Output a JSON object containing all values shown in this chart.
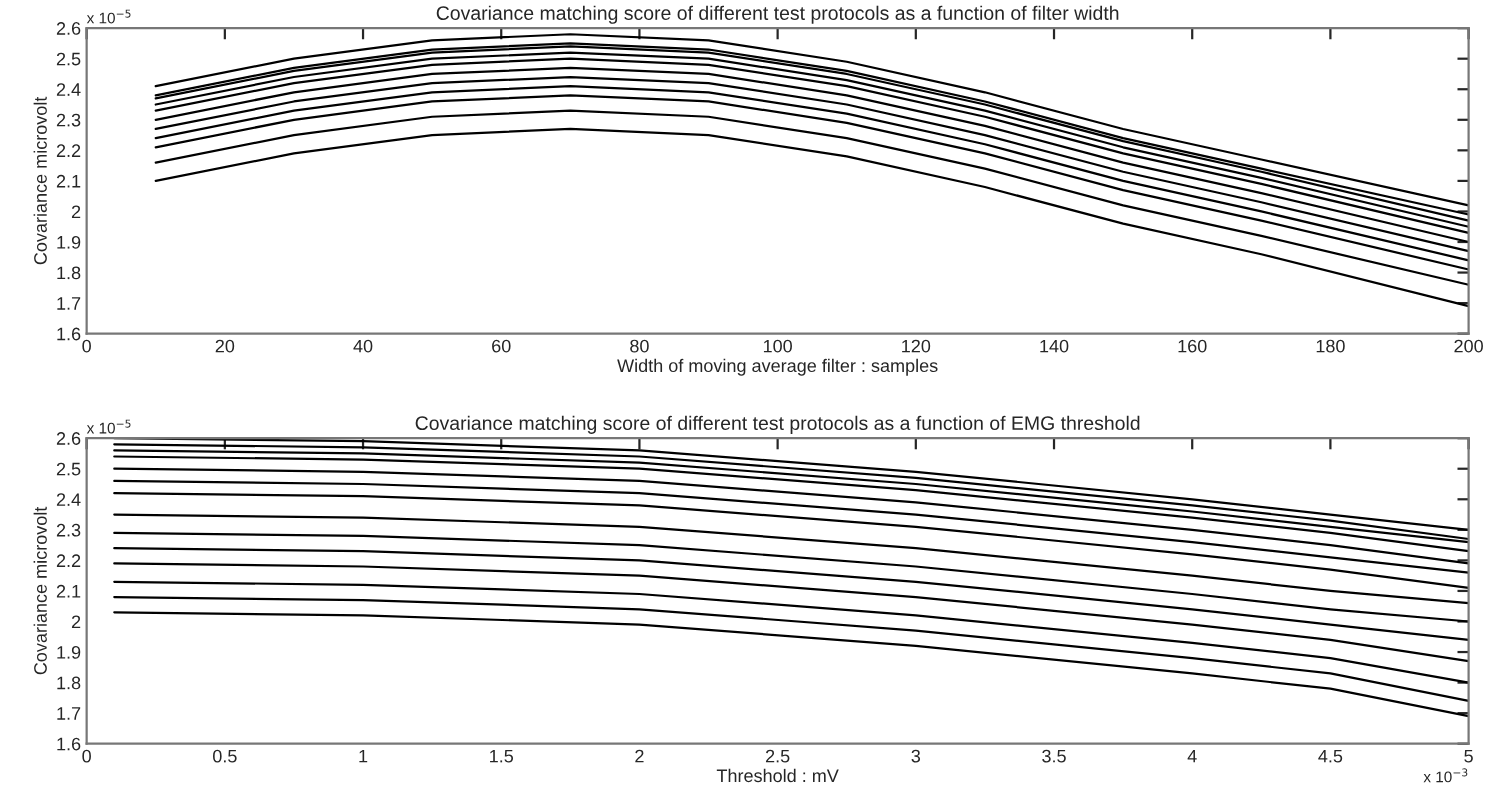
{
  "chart_data": [
    {
      "type": "line",
      "title": "Covariance matching score of different test protocols as a function of filter width",
      "xlabel": "Width of moving average filter : samples",
      "ylabel": "Covariance microvolt",
      "annotations": [
        "x 10$^{−5}$"
      ],
      "x": [
        10,
        30,
        50,
        70,
        90,
        110,
        130,
        150,
        170,
        200
      ],
      "xlim": [
        0,
        200
      ],
      "xticks": [
        0,
        20,
        40,
        60,
        80,
        100,
        120,
        140,
        160,
        180,
        200
      ],
      "ylim": [
        1.6,
        2.6
      ],
      "yticks": [
        1.6,
        1.7,
        1.8,
        1.9,
        2,
        2.1,
        2.2,
        2.3,
        2.4,
        2.5,
        2.6
      ],
      "grid": false,
      "marker": "none",
      "line_style": "solid",
      "series": [
        {
          "color": "#000000",
          "values": [
            2.41,
            2.5,
            2.56,
            2.58,
            2.56,
            2.49,
            2.39,
            2.27,
            2.17,
            2.02
          ]
        },
        {
          "color": "#000000",
          "values": [
            2.38,
            2.47,
            2.53,
            2.55,
            2.53,
            2.46,
            2.36,
            2.24,
            2.14,
            1.99
          ]
        },
        {
          "color": "#000000",
          "values": [
            2.37,
            2.46,
            2.52,
            2.54,
            2.52,
            2.45,
            2.35,
            2.23,
            2.13,
            1.97
          ]
        },
        {
          "color": "#000000",
          "values": [
            2.35,
            2.44,
            2.5,
            2.52,
            2.5,
            2.43,
            2.33,
            2.21,
            2.11,
            1.95
          ]
        },
        {
          "color": "#000000",
          "values": [
            2.33,
            2.42,
            2.48,
            2.5,
            2.48,
            2.41,
            2.31,
            2.19,
            2.09,
            1.93
          ]
        },
        {
          "color": "#000000",
          "values": [
            2.3,
            2.39,
            2.45,
            2.47,
            2.45,
            2.38,
            2.28,
            2.16,
            2.06,
            1.9
          ]
        },
        {
          "color": "#000000",
          "values": [
            2.27,
            2.36,
            2.42,
            2.44,
            2.42,
            2.35,
            2.25,
            2.13,
            2.03,
            1.87
          ]
        },
        {
          "color": "#000000",
          "values": [
            2.24,
            2.33,
            2.39,
            2.41,
            2.39,
            2.32,
            2.22,
            2.1,
            2.0,
            1.84
          ]
        },
        {
          "color": "#000000",
          "values": [
            2.21,
            2.3,
            2.36,
            2.38,
            2.36,
            2.29,
            2.19,
            2.07,
            1.97,
            1.81
          ]
        },
        {
          "color": "#000000",
          "values": [
            2.16,
            2.25,
            2.31,
            2.33,
            2.31,
            2.24,
            2.14,
            2.02,
            1.92,
            1.76
          ]
        },
        {
          "color": "#000000",
          "values": [
            2.1,
            2.19,
            2.25,
            2.27,
            2.25,
            2.18,
            2.08,
            1.96,
            1.86,
            1.69
          ]
        }
      ]
    },
    {
      "type": "line",
      "title": "Covariance matching score of different test protocols as a function of EMG threshold",
      "xlabel": "Threshold : mV",
      "ylabel": "Covariance microvolt",
      "annotations": [
        "x 10$^{−5}$",
        "x 10$^{−3}$"
      ],
      "x": [
        0.1,
        1,
        2,
        3,
        4,
        4.5,
        5
      ],
      "xlim": [
        0,
        5
      ],
      "xticks": [
        0,
        0.5,
        1,
        1.5,
        2,
        2.5,
        3,
        3.5,
        4,
        4.5,
        5
      ],
      "ylim": [
        1.6,
        2.6
      ],
      "yticks": [
        1.6,
        1.7,
        1.8,
        1.9,
        2,
        2.1,
        2.2,
        2.3,
        2.4,
        2.5,
        2.6
      ],
      "grid": false,
      "marker": "none",
      "line_style": "solid",
      "series": [
        {
          "color": "#000000",
          "values": [
            2.6,
            2.59,
            2.56,
            2.49,
            2.4,
            2.35,
            2.3
          ]
        },
        {
          "color": "#000000",
          "values": [
            2.58,
            2.57,
            2.54,
            2.47,
            2.38,
            2.33,
            2.27
          ]
        },
        {
          "color": "#000000",
          "values": [
            2.56,
            2.55,
            2.52,
            2.45,
            2.36,
            2.31,
            2.26
          ]
        },
        {
          "color": "#000000",
          "values": [
            2.54,
            2.53,
            2.5,
            2.43,
            2.34,
            2.29,
            2.23
          ]
        },
        {
          "color": "#000000",
          "values": [
            2.5,
            2.49,
            2.46,
            2.39,
            2.3,
            2.25,
            2.19
          ]
        },
        {
          "color": "#000000",
          "values": [
            2.46,
            2.45,
            2.42,
            2.35,
            2.26,
            2.21,
            2.16
          ]
        },
        {
          "color": "#000000",
          "values": [
            2.42,
            2.41,
            2.38,
            2.31,
            2.22,
            2.17,
            2.11
          ]
        },
        {
          "color": "#000000",
          "values": [
            2.35,
            2.34,
            2.31,
            2.24,
            2.15,
            2.1,
            2.06
          ]
        },
        {
          "color": "#000000",
          "values": [
            2.29,
            2.28,
            2.25,
            2.18,
            2.09,
            2.04,
            2.0
          ]
        },
        {
          "color": "#000000",
          "values": [
            2.24,
            2.23,
            2.2,
            2.13,
            2.04,
            1.99,
            1.94
          ]
        },
        {
          "color": "#000000",
          "values": [
            2.19,
            2.18,
            2.15,
            2.08,
            1.99,
            1.94,
            1.87
          ]
        },
        {
          "color": "#000000",
          "values": [
            2.13,
            2.12,
            2.09,
            2.02,
            1.93,
            1.88,
            1.8
          ]
        },
        {
          "color": "#000000",
          "values": [
            2.08,
            2.07,
            2.04,
            1.97,
            1.88,
            1.83,
            1.74
          ]
        },
        {
          "color": "#000000",
          "values": [
            2.03,
            2.02,
            1.99,
            1.92,
            1.83,
            1.78,
            1.69
          ]
        }
      ]
    }
  ]
}
